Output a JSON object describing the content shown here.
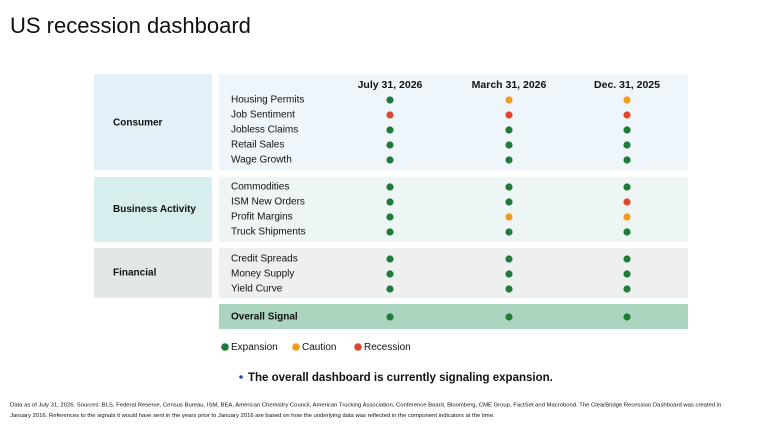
{
  "title": "US recession dashboard",
  "columns": [
    "July 31, 2026",
    "March 31, 2026",
    "Dec. 31, 2025"
  ],
  "groups": [
    {
      "name": "Consumer",
      "rows": [
        {
          "label": "Housing Permits",
          "signals": [
            "#1e7b3a",
            "#f39a1e",
            "#f39a1e"
          ]
        },
        {
          "label": "Job Sentiment",
          "signals": [
            "#e0452b",
            "#e0452b",
            "#e0452b"
          ]
        },
        {
          "label": "Jobless Claims",
          "signals": [
            "#1e7b3a",
            "#1e7b3a",
            "#1e7b3a"
          ]
        },
        {
          "label": "Retail Sales",
          "signals": [
            "#1e7b3a",
            "#1e7b3a",
            "#1e7b3a"
          ]
        },
        {
          "label": "Wage Growth",
          "signals": [
            "#1e7b3a",
            "#1e7b3a",
            "#1e7b3a"
          ]
        }
      ]
    },
    {
      "name": "Business Activity",
      "rows": [
        {
          "label": "Commodities",
          "signals": [
            "#1e7b3a",
            "#1e7b3a",
            "#1e7b3a"
          ]
        },
        {
          "label": "ISM New Orders",
          "signals": [
            "#1e7b3a",
            "#1e7b3a",
            "#e0452b"
          ]
        },
        {
          "label": "Profit Margins",
          "signals": [
            "#1e7b3a",
            "#f39a1e",
            "#f39a1e"
          ]
        },
        {
          "label": "Truck Shipments",
          "signals": [
            "#1e7b3a",
            "#1e7b3a",
            "#1e7b3a"
          ]
        }
      ]
    },
    {
      "name": "Financial",
      "rows": [
        {
          "label": "Credit Spreads",
          "signals": [
            "#1e7b3a",
            "#1e7b3a",
            "#1e7b3a"
          ]
        },
        {
          "label": "Money Supply",
          "signals": [
            "#1e7b3a",
            "#1e7b3a",
            "#1e7b3a"
          ]
        },
        {
          "label": "Yield Curve",
          "signals": [
            "#1e7b3a",
            "#1e7b3a",
            "#1e7b3a"
          ]
        }
      ]
    }
  ],
  "overall": {
    "label": "Overall Signal",
    "signals": [
      "#1e7b3a",
      "#1e7b3a",
      "#1e7b3a"
    ]
  },
  "legend": [
    {
      "label": "Expansion",
      "color": "#1e7b3a"
    },
    {
      "label": "Caution",
      "color": "#f39a1e"
    },
    {
      "label": "Recession",
      "color": "#e0452b"
    }
  ],
  "note": "The overall dashboard is currently signaling expansion.",
  "footnote": [
    "Data as of July 31, 2026. Sources: BLS, Federal Reserve, Census Bureau, ISM, BEA, American Chemistry Council, American Trucking Association, Conference Board, Bloomberg, CME Group, FactSet and Macrobond. The ClearBridge Recession Dashboard was created in",
    "January 2016. References to the signals it would have sent in the years prior to January 2016 are based on how the underlying data was reflected in the component indicators at the time."
  ]
}
